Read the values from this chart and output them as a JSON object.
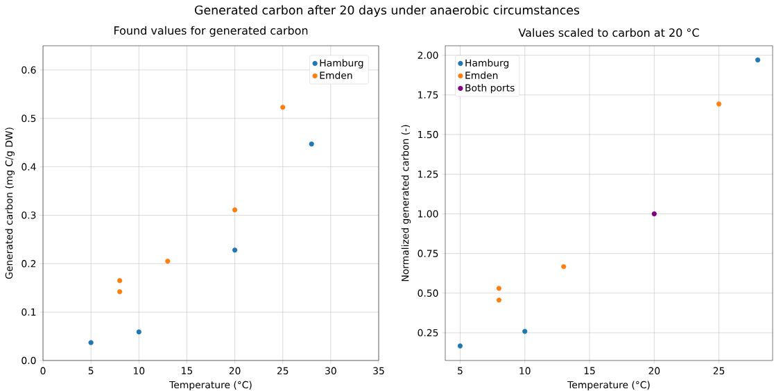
{
  "chart_data": [
    {
      "type": "scatter",
      "title": "Found values for generated carbon",
      "xlabel": "Temperature (°C)",
      "ylabel": "Generated carbon (mg C/g DW)",
      "annotations": [
        "Generated carbon after 20 days under anaerobic circumstances"
      ],
      "series": [
        {
          "name": "Hamburg",
          "color": "#1f77b4",
          "x": [
            5,
            10,
            20,
            28
          ],
          "values": [
            0.037,
            0.059,
            0.228,
            0.447
          ]
        },
        {
          "name": "Emden",
          "color": "#ff7f0e",
          "x": [
            8,
            8,
            13,
            20,
            25
          ],
          "values": [
            0.165,
            0.142,
            0.205,
            0.311,
            0.523
          ]
        }
      ],
      "xlim": [
        0,
        35
      ],
      "ylim": [
        0,
        0.65
      ],
      "xticks": [
        0,
        5,
        10,
        15,
        20,
        25,
        30,
        35
      ],
      "yticks": [
        {
          "value": 0,
          "label": "0.0"
        },
        0.1,
        0.2,
        0.3,
        0.4,
        0.5,
        0.6
      ],
      "grid": true,
      "legend": "top right",
      "marker": "circle"
    },
    {
      "type": "scatter",
      "title": "Values scaled to carbon at 20 °C",
      "xlabel": "Temperature (°C)",
      "ylabel": "Normalized generated carbon (-)",
      "series": [
        {
          "name": "Hamburg",
          "color": "#1f77b4",
          "x": [
            5,
            10,
            28
          ],
          "values": [
            0.167,
            0.259,
            1.97
          ]
        },
        {
          "name": "Emden",
          "color": "#ff7f0e",
          "x": [
            8,
            8,
            13,
            25
          ],
          "values": [
            0.53,
            0.456,
            0.667,
            1.693
          ]
        },
        {
          "name": "Both ports",
          "color": "#800080",
          "x": [
            20
          ],
          "values": [
            1.0
          ]
        }
      ],
      "xlim": [
        3.85,
        29.15
      ],
      "ylim": [
        0.075,
        2.06
      ],
      "xticks": [
        5,
        10,
        15,
        20,
        25
      ],
      "yticks": [
        0.25,
        {
          "value": 0.5,
          "label": "0.50"
        },
        0.75,
        {
          "value": 1,
          "label": "1.00"
        },
        1.25,
        {
          "value": 1.5,
          "label": "1.50"
        },
        1.75,
        {
          "value": 2,
          "label": "2.00"
        }
      ],
      "grid": true,
      "legend": "top left",
      "marker": "circle"
    }
  ]
}
